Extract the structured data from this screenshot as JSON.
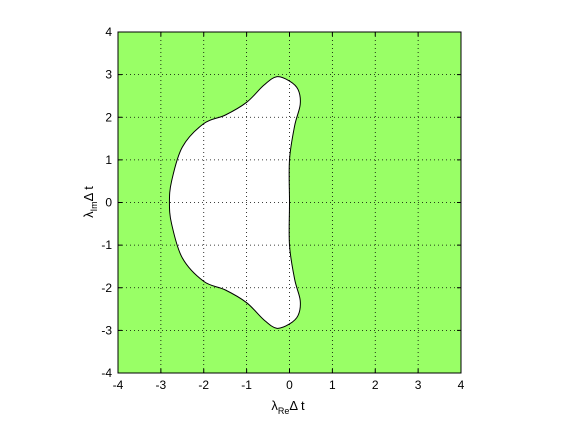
{
  "chart_data": {
    "type": "area",
    "xlim": [
      -4,
      4
    ],
    "ylim": [
      -4,
      4
    ],
    "x_ticks": [
      -4,
      -3,
      -2,
      -1,
      0,
      1,
      2,
      3,
      4
    ],
    "y_ticks": [
      -4,
      -3,
      -2,
      -1,
      0,
      1,
      2,
      3,
      4
    ],
    "x_tick_labels": [
      "-4",
      "-3",
      "-2",
      "-1",
      "0",
      "1",
      "2",
      "3",
      "4"
    ],
    "y_tick_labels": [
      "-4",
      "-3",
      "-2",
      "-1",
      "0",
      "1",
      "2",
      "3",
      "4"
    ],
    "xlabel": {
      "symbol": "λ",
      "subscript": "Re",
      "suffix": "Δ t"
    },
    "ylabel": {
      "symbol": "λ",
      "subscript": "Im",
      "suffix": "Δ t"
    },
    "grid": true,
    "grid_style": "dotted",
    "colors": {
      "fill_outside": "#99ff66",
      "fill_inside": "#ffffff",
      "boundary": "#000000",
      "grid": "#000000"
    },
    "boundary_curve": [
      [
        0.0,
        0.0
      ],
      [
        0.0,
        1.0
      ],
      [
        0.12,
        1.8
      ],
      [
        0.25,
        2.3
      ],
      [
        0.2,
        2.65
      ],
      [
        0.0,
        2.85
      ],
      [
        -0.3,
        2.95
      ],
      [
        -0.6,
        2.75
      ],
      [
        -1.0,
        2.35
      ],
      [
        -1.5,
        2.05
      ],
      [
        -2.0,
        1.85
      ],
      [
        -2.5,
        1.3
      ],
      [
        -2.75,
        0.5
      ],
      [
        -2.8,
        0.0
      ],
      [
        -2.75,
        -0.5
      ],
      [
        -2.5,
        -1.3
      ],
      [
        -2.0,
        -1.85
      ],
      [
        -1.5,
        -2.05
      ],
      [
        -1.0,
        -2.35
      ],
      [
        -0.6,
        -2.75
      ],
      [
        -0.3,
        -2.95
      ],
      [
        0.0,
        -2.85
      ],
      [
        0.2,
        -2.65
      ],
      [
        0.25,
        -2.3
      ],
      [
        0.12,
        -1.8
      ],
      [
        0.0,
        -1.0
      ],
      [
        0.0,
        0.0
      ]
    ]
  }
}
